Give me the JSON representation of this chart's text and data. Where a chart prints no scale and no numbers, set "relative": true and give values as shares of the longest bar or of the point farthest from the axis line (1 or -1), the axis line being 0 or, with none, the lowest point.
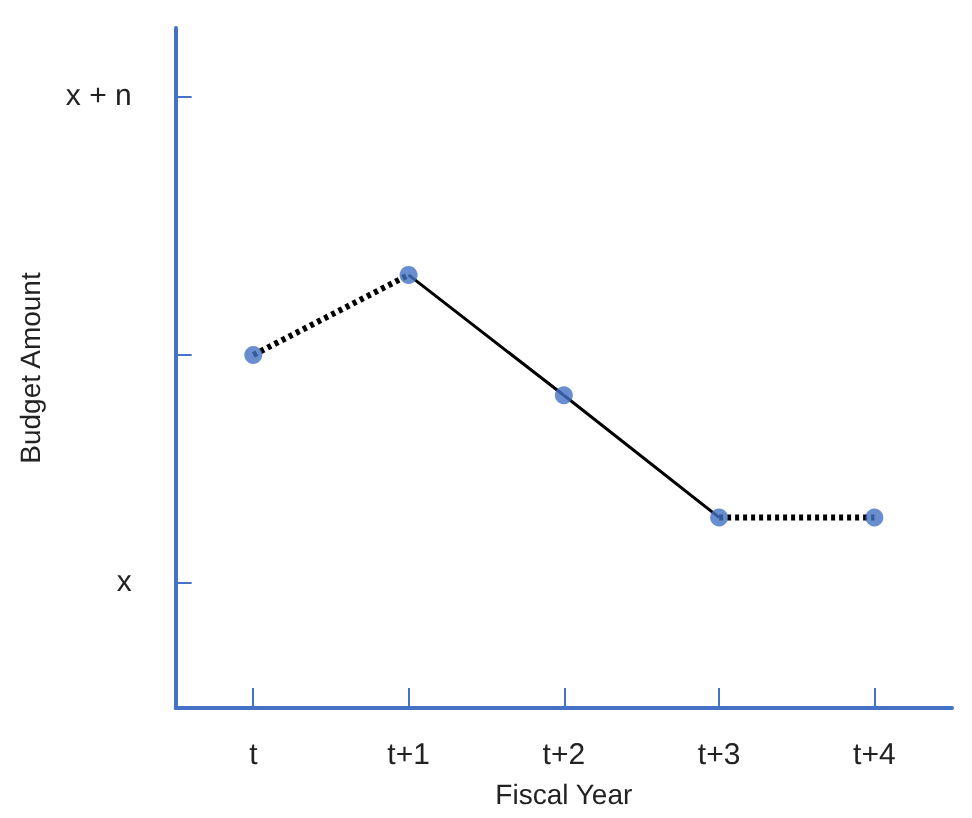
{
  "chart_data": {
    "type": "line",
    "xlabel": "Fiscal Year",
    "ylabel": "Budget Amount",
    "categories": [
      "t",
      "t+1",
      "t+2",
      "t+3",
      "t+4"
    ],
    "relative": true,
    "grid": false,
    "annotations": [
      "x",
      "x + n"
    ],
    "series": [
      {
        "color": "#000000",
        "line_style": "dotted",
        "marker": "none",
        "values": [
          0.815,
          1,
          null,
          null,
          null
        ]
      },
      {
        "color": "#000000",
        "line_style": "solid",
        "marker": "none",
        "values": [
          null,
          1,
          0.722,
          0.44,
          null
        ]
      },
      {
        "color": "#000000",
        "line_style": "dotted",
        "marker": "none",
        "values": [
          null,
          null,
          null,
          0.44,
          0.44
        ]
      },
      {
        "type": "scatter",
        "color": "#4472c4",
        "marker": "circle",
        "values": [
          0.815,
          1,
          0.722,
          0.44,
          0.44
        ]
      }
    ]
  }
}
